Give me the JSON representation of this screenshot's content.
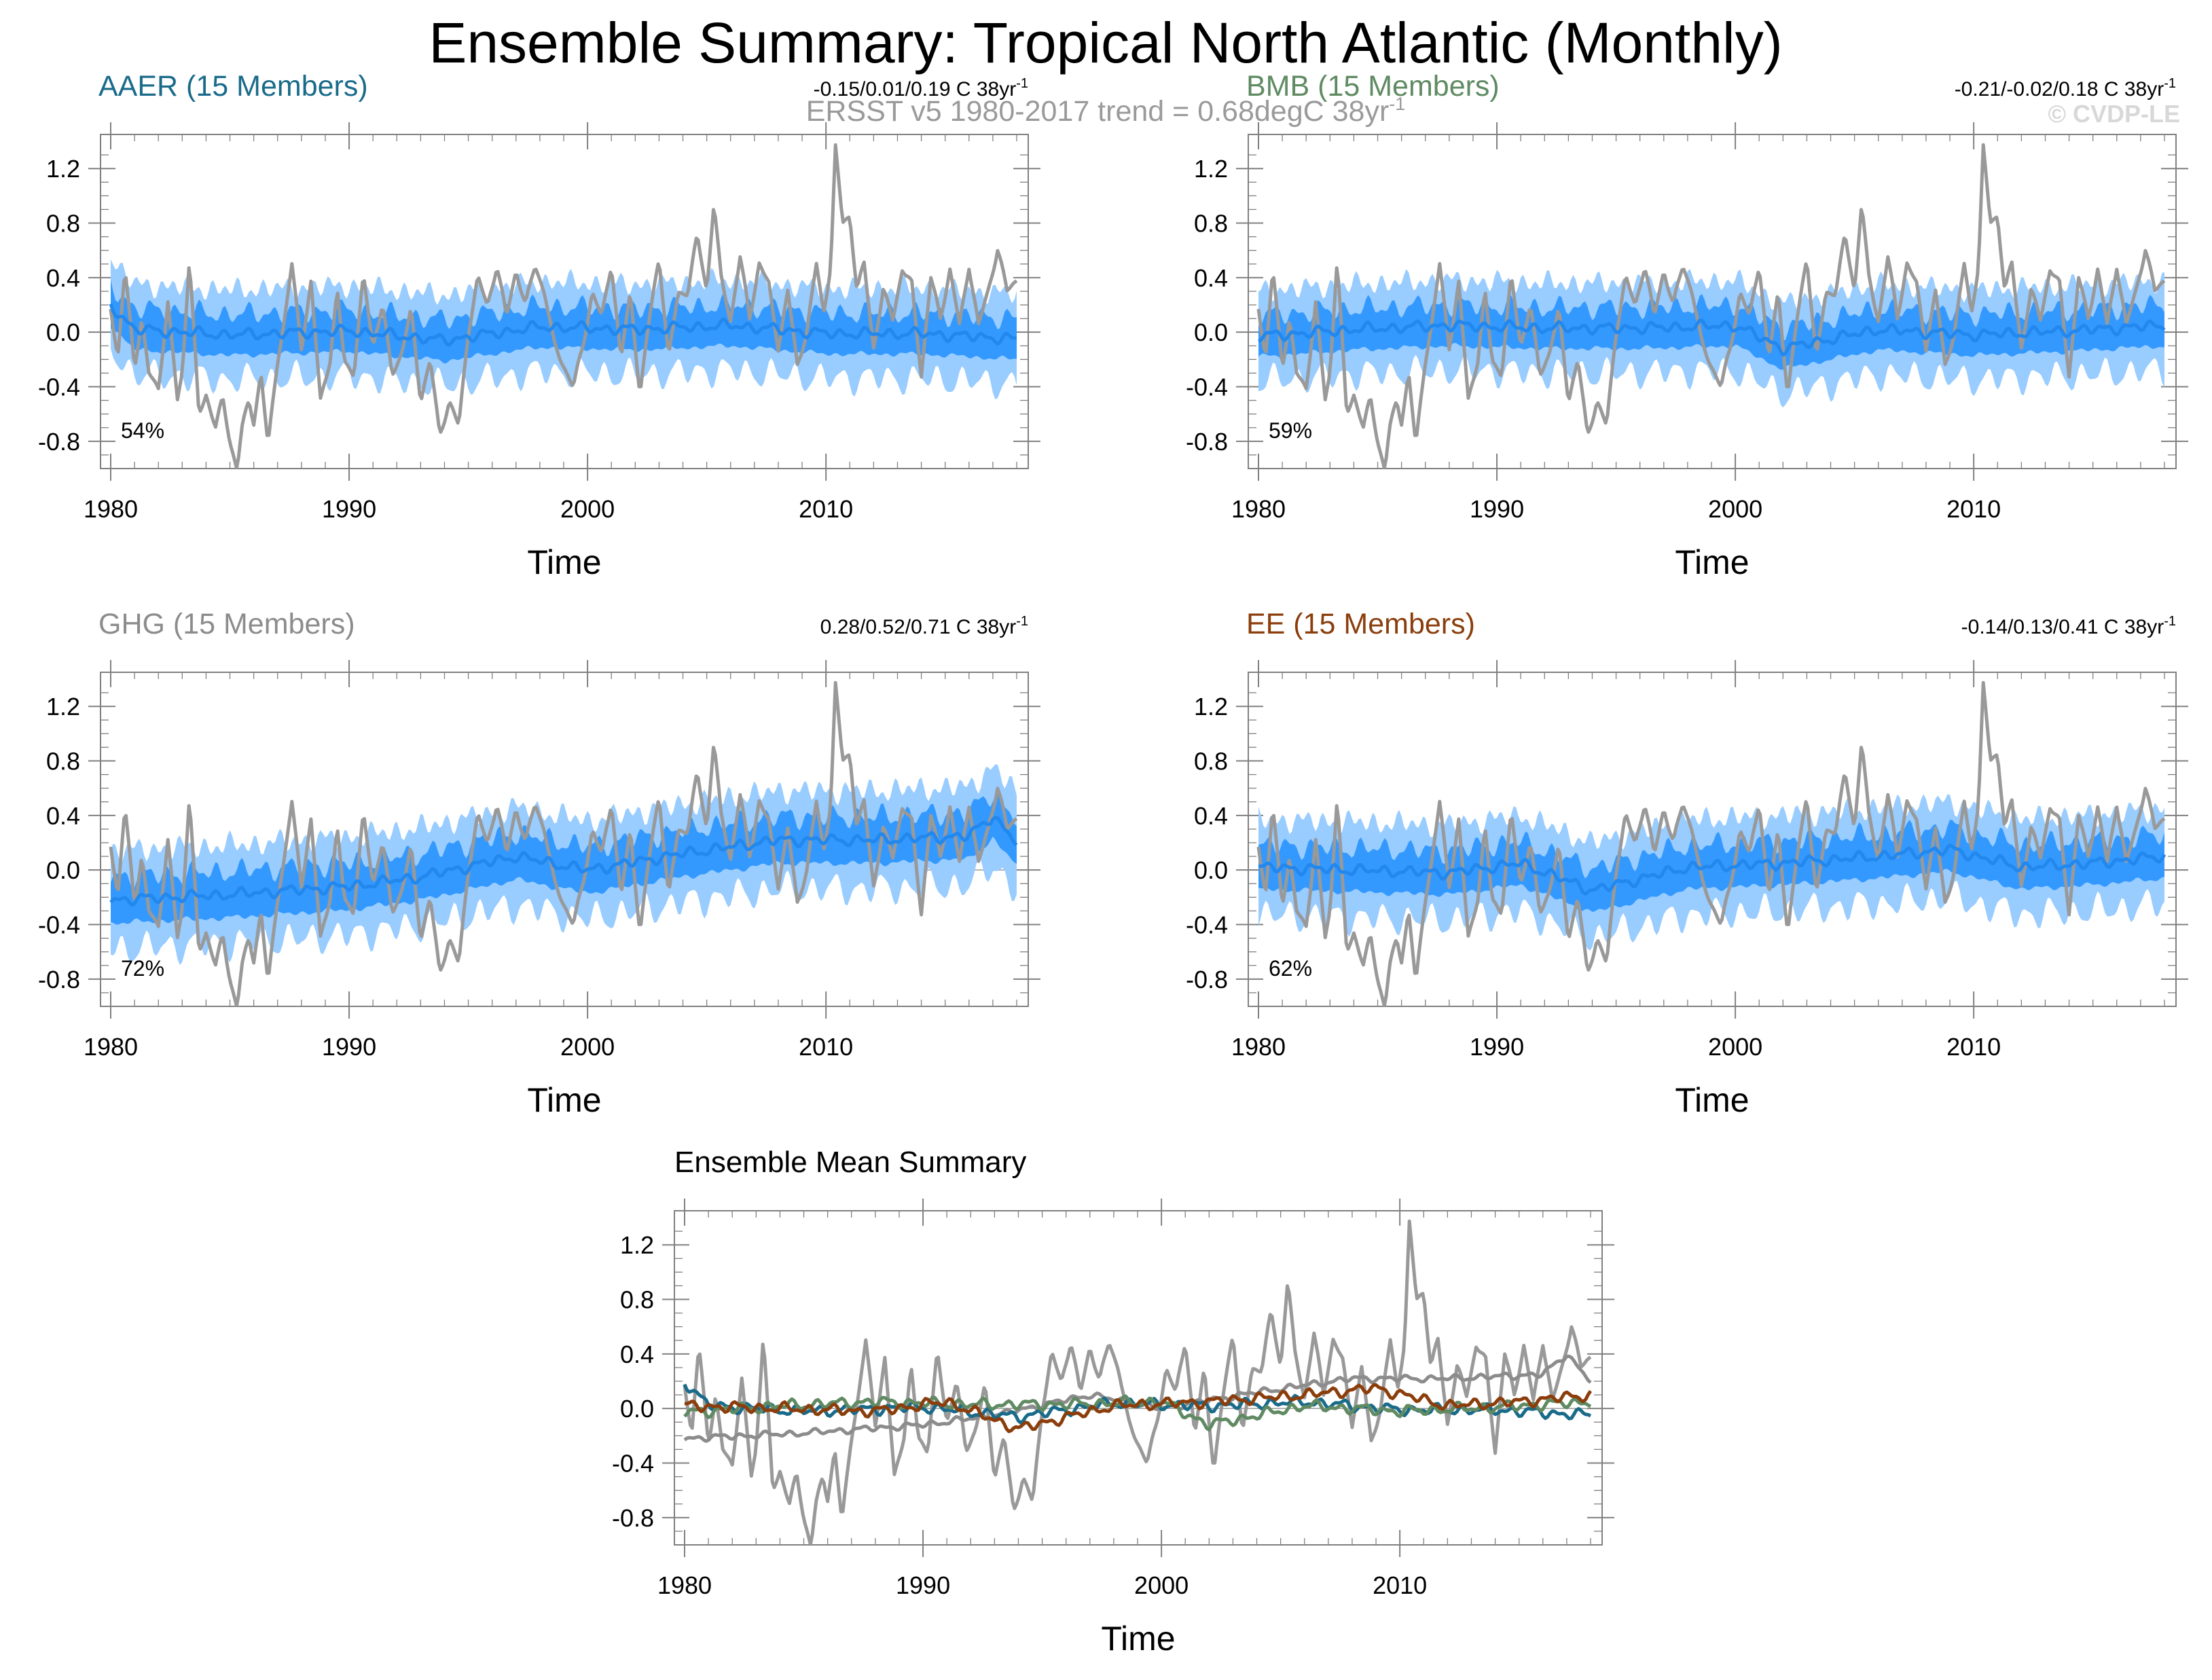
{
  "title": "Ensemble Summary: Tropical North Atlantic (Monthly)",
  "subtitle": "ERSST v5 1980-2017 trend = 0.68degC 38yr",
  "subtitle_sup": "-1",
  "watermark": "© CVDP-LE",
  "colors": {
    "observed": "#999999",
    "spread_outer": "#99ccff",
    "spread_inner": "#3399ff",
    "ensemble_mean": "#2288ee",
    "AAER": "#1a6b8a",
    "BMB": "#5f8a62",
    "GHG": "#8c8c8c",
    "EE": "#8b3e0c"
  },
  "chart_data": [
    {
      "type": "line",
      "name": "AAER",
      "title": "AAER (15 Members)",
      "trend_text": "-0.15/0.01/0.19 C 38yr",
      "trend_sup": "-1",
      "percent_label": "54%",
      "xlabel": "Time",
      "ylabel": "",
      "xlim": [
        1980,
        2018
      ],
      "ylim": [
        -1.0,
        1.45
      ],
      "xticks": [
        1980,
        1990,
        2000,
        2010
      ],
      "xtick_labels": [
        "1980",
        "1990",
        "2000",
        "2010"
      ],
      "yticks": [
        1.2,
        0.8,
        0.4,
        0.0,
        -0.4,
        -0.8
      ],
      "ytick_labels": [
        "1.2",
        "0.8",
        "0.4",
        "0.0",
        "-0.4",
        "-0.8"
      ],
      "ensemble_mean_anchors": {
        "x": [
          1980,
          1981,
          1985,
          1990,
          1994,
          1998,
          2002,
          2006,
          2010,
          2014,
          2018
        ],
        "y": [
          0.2,
          0.02,
          -0.02,
          0.01,
          -0.06,
          0.04,
          0.02,
          0.05,
          -0.01,
          -0.01,
          -0.05
        ]
      },
      "spread_inner_halfwidth": 0.15,
      "spread_outer_halfwidth": 0.33
    },
    {
      "type": "line",
      "name": "BMB",
      "title": "BMB (15 Members)",
      "trend_text": "-0.21/-0.02/0.18 C 38yr",
      "trend_sup": "-1",
      "percent_label": "59%",
      "xlabel": "Time",
      "ylabel": "",
      "xlim": [
        1980,
        2018
      ],
      "ylim": [
        -1.0,
        1.45
      ],
      "xticks": [
        1980,
        1990,
        2000,
        2010
      ],
      "xtick_labels": [
        "1980",
        "1990",
        "2000",
        "2010"
      ],
      "yticks": [
        1.2,
        0.8,
        0.4,
        0.0,
        -0.4,
        -0.8
      ],
      "ytick_labels": [
        "1.2",
        "0.8",
        "0.4",
        "0.0",
        "-0.4",
        "-0.8"
      ],
      "ensemble_mean_anchors": {
        "x": [
          1980,
          1984,
          1988,
          1992,
          1996,
          2000,
          2002,
          2006,
          2010,
          2014,
          2018
        ],
        "y": [
          -0.03,
          0.02,
          0.05,
          0.03,
          0.03,
          0.05,
          -0.12,
          0.02,
          -0.02,
          0.01,
          0.05
        ]
      },
      "spread_inner_halfwidth": 0.15,
      "spread_outer_halfwidth": 0.33
    },
    {
      "type": "line",
      "name": "GHG",
      "title": "GHG (15 Members)",
      "trend_text": "0.28/0.52/0.71 C 38yr",
      "trend_sup": "-1",
      "percent_label": "72%",
      "xlabel": "Time",
      "ylabel": "",
      "xlim": [
        1980,
        2018
      ],
      "ylim": [
        -1.0,
        1.45
      ],
      "xticks": [
        1980,
        1990,
        2000,
        2010
      ],
      "xtick_labels": [
        "1980",
        "1990",
        "2000",
        "2010"
      ],
      "yticks": [
        1.2,
        0.8,
        0.4,
        0.0,
        -0.4,
        -0.8
      ],
      "ytick_labels": [
        "1.2",
        "0.8",
        "0.4",
        "0.0",
        "-0.4",
        "-0.8"
      ],
      "ensemble_mean_anchors": {
        "x": [
          1980,
          1985,
          1990,
          1993,
          1997,
          2000,
          2004,
          2008,
          2012,
          2016,
          2017,
          2018
        ],
        "y": [
          -0.22,
          -0.18,
          -0.12,
          -0.05,
          0.1,
          0.0,
          0.12,
          0.22,
          0.22,
          0.25,
          0.4,
          0.2
        ]
      },
      "spread_inner_halfwidth": 0.17,
      "spread_outer_halfwidth": 0.36
    },
    {
      "type": "line",
      "name": "EE",
      "title": "EE (15 Members)",
      "trend_text": "-0.14/0.13/0.41 C 38yr",
      "trend_sup": "-1",
      "percent_label": "62%",
      "xlabel": "Time",
      "ylabel": "",
      "xlim": [
        1980,
        2018
      ],
      "ylim": [
        -1.0,
        1.45
      ],
      "xticks": [
        1980,
        1990,
        2000,
        2010
      ],
      "xtick_labels": [
        "1980",
        "1990",
        "2000",
        "2010"
      ],
      "yticks": [
        1.2,
        0.8,
        0.4,
        0.0,
        -0.4,
        -0.8
      ],
      "ytick_labels": [
        "1.2",
        "0.8",
        "0.4",
        "0.0",
        "-0.4",
        "-0.8"
      ],
      "ensemble_mean_anchors": {
        "x": [
          1980,
          1984,
          1988,
          1991,
          1994,
          1998,
          2002,
          2006,
          2009,
          2012,
          2015,
          2018
        ],
        "y": [
          0.02,
          0.0,
          -0.02,
          0.05,
          -0.15,
          0.02,
          0.05,
          0.1,
          0.15,
          0.02,
          0.05,
          0.1
        ]
      },
      "spread_inner_halfwidth": 0.16,
      "spread_outer_halfwidth": 0.35
    },
    {
      "type": "line",
      "name": "Ensemble Mean",
      "title": "Ensemble Mean Summary",
      "xlabel": "Time",
      "ylabel": "",
      "xlim": [
        1980,
        2018
      ],
      "ylim": [
        -1.0,
        1.45
      ],
      "xticks": [
        1980,
        1990,
        2000,
        2010
      ],
      "xtick_labels": [
        "1980",
        "1990",
        "2000",
        "2010"
      ],
      "yticks": [
        1.2,
        0.8,
        0.4,
        0.0,
        -0.4,
        -0.8
      ],
      "ytick_labels": [
        "1.2",
        "0.8",
        "0.4",
        "0.0",
        "-0.4",
        "-0.8"
      ],
      "series": [
        {
          "name": "AAER",
          "x": [
            1980,
            1981,
            1985,
            1990,
            1994,
            1998,
            2002,
            2006,
            2010,
            2014,
            2018
          ],
          "y": [
            0.2,
            0.02,
            -0.02,
            0.01,
            -0.06,
            0.04,
            0.02,
            0.05,
            -0.01,
            -0.01,
            -0.05
          ]
        },
        {
          "name": "BMB",
          "x": [
            1980,
            1984,
            1988,
            1992,
            1996,
            2000,
            2002,
            2006,
            2010,
            2014,
            2018
          ],
          "y": [
            -0.03,
            0.02,
            0.05,
            0.03,
            0.03,
            0.05,
            -0.12,
            0.02,
            -0.02,
            0.01,
            0.05
          ]
        },
        {
          "name": "GHG",
          "x": [
            1980,
            1985,
            1990,
            1993,
            1997,
            2000,
            2004,
            2008,
            2012,
            2016,
            2017,
            2018
          ],
          "y": [
            -0.22,
            -0.18,
            -0.12,
            -0.05,
            0.1,
            0.0,
            0.12,
            0.22,
            0.22,
            0.25,
            0.4,
            0.2
          ]
        },
        {
          "name": "EE",
          "x": [
            1980,
            1984,
            1988,
            1991,
            1994,
            1998,
            2002,
            2006,
            2009,
            2012,
            2015,
            2018
          ],
          "y": [
            0.02,
            0.0,
            -0.02,
            0.05,
            -0.15,
            0.02,
            0.05,
            0.1,
            0.15,
            0.02,
            0.05,
            0.1
          ]
        }
      ]
    }
  ],
  "observed_series": {
    "name": "ERSST v5",
    "x": [
      1980.0,
      1980.3,
      1980.6,
      1981.0,
      1981.3,
      1981.6,
      1982.0,
      1982.4,
      1982.8,
      1983.0,
      1983.3,
      1983.7,
      1984.0,
      1984.4,
      1984.7,
      1985.0,
      1985.3,
      1985.5,
      1985.8,
      1986.0,
      1986.3,
      1986.6,
      1987.0,
      1987.3,
      1987.6,
      1988.0,
      1988.4,
      1988.8,
      1989.2,
      1989.5,
      1989.8,
      1990.2,
      1990.6,
      1991.0,
      1991.4,
      1991.8,
      1992.2,
      1992.6,
      1993.0,
      1993.4,
      1993.8,
      1994.2,
      1994.6,
      1995.0,
      1995.4,
      1995.8,
      1996.2,
      1996.6,
      1997.0,
      1997.4,
      1997.8,
      1998.2,
      1998.6,
      1999.0,
      1999.4,
      1999.8,
      2000.2,
      2000.6,
      2001.0,
      2001.4,
      2001.8,
      2002.2,
      2002.6,
      2003.0,
      2003.4,
      2003.8,
      2004.2,
      2004.6,
      2005.0,
      2005.3,
      2005.6,
      2006.0,
      2006.4,
      2006.8,
      2007.2,
      2007.6,
      2008.0,
      2008.4,
      2008.8,
      2009.2,
      2009.6,
      2009.9,
      2010.2,
      2010.4,
      2010.7,
      2011.0,
      2011.3,
      2011.6,
      2012.0,
      2012.4,
      2012.8,
      2013.2,
      2013.6,
      2014.0,
      2014.4,
      2014.8,
      2015.2,
      2015.6,
      2016.0,
      2016.4,
      2016.8,
      2017.2,
      2017.6,
      2018.0
    ],
    "y": [
      0.2,
      -0.2,
      0.45,
      -0.25,
      0.1,
      -0.3,
      -0.4,
      0.2,
      -0.5,
      -0.3,
      0.55,
      -0.6,
      -0.45,
      -0.7,
      -0.5,
      -0.8,
      -1.0,
      -0.7,
      -0.5,
      -0.65,
      -0.3,
      -0.85,
      -0.2,
      0.1,
      0.5,
      -0.1,
      0.35,
      -0.5,
      -0.2,
      0.3,
      -0.2,
      -0.3,
      0.4,
      -0.1,
      0.2,
      -0.3,
      -0.15,
      0.15,
      -0.5,
      -0.2,
      -0.75,
      -0.5,
      -0.7,
      0.0,
      0.4,
      0.2,
      0.5,
      0.1,
      0.45,
      0.2,
      0.5,
      0.3,
      -0.1,
      -0.25,
      -0.4,
      -0.1,
      0.3,
      0.1,
      0.5,
      -0.2,
      0.3,
      -0.45,
      0.1,
      0.55,
      -0.2,
      0.3,
      0.3,
      0.7,
      0.3,
      0.95,
      0.4,
      0.1,
      0.55,
      0.1,
      0.5,
      0.35,
      -0.1,
      0.3,
      -0.25,
      0.0,
      0.5,
      0.15,
      0.5,
      1.35,
      0.8,
      0.85,
      0.3,
      0.5,
      -0.1,
      0.3,
      0.1,
      0.45,
      0.35,
      -0.3,
      0.4,
      0.1,
      0.45,
      0.05,
      0.5,
      0.05,
      0.3,
      0.6,
      0.3,
      0.4
    ]
  },
  "layout": {
    "panel_columns": 2,
    "panel_rows": 3,
    "legend": "none"
  }
}
